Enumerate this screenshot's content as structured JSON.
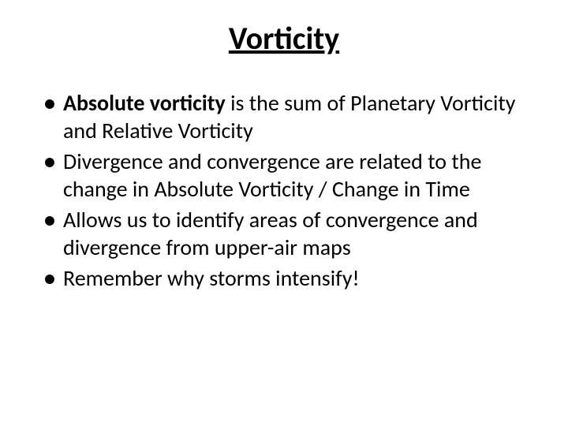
{
  "slide": {
    "title": "Vorticity",
    "title_fontsize": 40,
    "title_color": "#000000",
    "background_color": "#ffffff",
    "bullets": {
      "fontsize": 28,
      "color": "#000000",
      "items": [
        {
          "bold_lead": "Absolute vorticity",
          "rest": " is the sum of Planetary Vorticity and Relative Vorticity"
        },
        {
          "bold_lead": "",
          "rest": "Divergence and convergence are related to the change in Absolute Vorticity / Change in Time"
        },
        {
          "bold_lead": "",
          "rest": "Allows us to identify areas of convergence and divergence from upper-air maps"
        },
        {
          "bold_lead": "",
          "rest": "Remember why storms intensify!"
        }
      ]
    }
  }
}
